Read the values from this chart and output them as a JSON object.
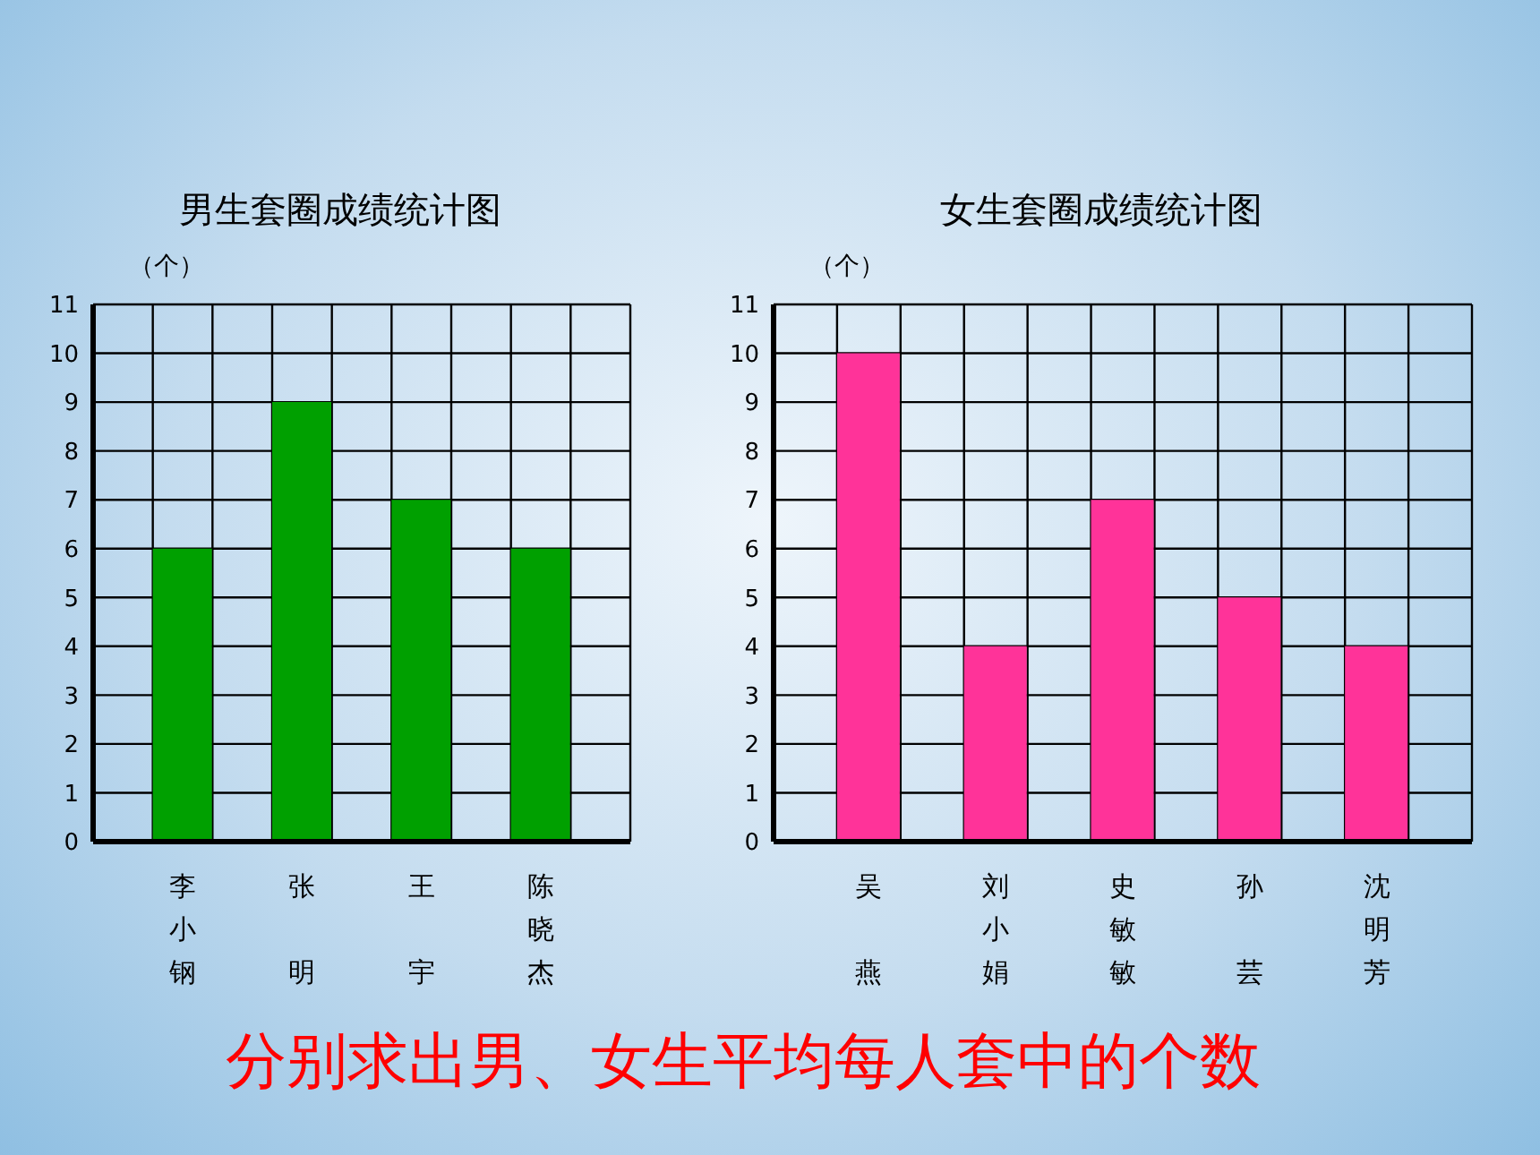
{
  "chart_data": [
    {
      "type": "bar",
      "title": "男生套圈成绩统计图",
      "ylabel": "（个）",
      "categories": [
        null,
        "李小钢",
        null,
        "张明",
        null,
        "王宇",
        null,
        "陈晓杰",
        null
      ],
      "values": [
        null,
        6,
        null,
        9,
        null,
        7,
        null,
        6,
        null
      ],
      "color": "#00a000",
      "ylim": [
        0,
        11
      ],
      "yticks": [
        0,
        1,
        2,
        3,
        4,
        5,
        6,
        7,
        8,
        9,
        10,
        11
      ],
      "grid": true
    },
    {
      "type": "bar",
      "title": "女生套圈成绩统计图",
      "ylabel": "（个）",
      "categories": [
        null,
        "吴燕",
        null,
        "刘小娟",
        null,
        "史敏敏",
        null,
        "孙芸",
        null,
        "沈明芳",
        null
      ],
      "values": [
        null,
        10,
        null,
        4,
        null,
        7,
        null,
        5,
        null,
        4,
        null
      ],
      "color": "#ff3399",
      "ylim": [
        0,
        11
      ],
      "yticks": [
        0,
        1,
        2,
        3,
        4,
        5,
        6,
        7,
        8,
        9,
        10,
        11
      ],
      "grid": true
    },
    {
      "type": "other",
      "annotations": [
        "分别求出男、女生平均每人套中的个数"
      ]
    }
  ]
}
